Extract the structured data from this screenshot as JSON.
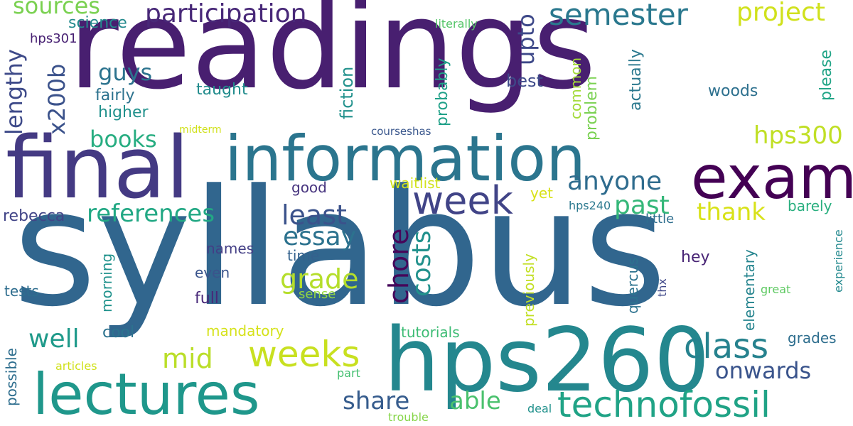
{
  "words": [
    {
      "key": "readings",
      "text": "readings",
      "color": "#481f70"
    },
    {
      "key": "syllabus",
      "text": "syllabus",
      "color": "#31668e"
    },
    {
      "key": "final",
      "text": "final",
      "color": "#443a83"
    },
    {
      "key": "information",
      "text": "information",
      "color": "#2b758e"
    },
    {
      "key": "exam",
      "text": "exam",
      "color": "#440154"
    },
    {
      "key": "hps260",
      "text": "hps260",
      "color": "#24878e"
    },
    {
      "key": "lectures",
      "text": "lectures",
      "color": "#1f978b"
    },
    {
      "key": "technofossil",
      "text": "technofossil",
      "color": "#20a386"
    },
    {
      "key": "weeks",
      "text": "weeks",
      "color": "#c8e020"
    },
    {
      "key": "class",
      "text": "class",
      "color": "#26828e"
    },
    {
      "key": "week",
      "text": "week",
      "color": "#414487"
    },
    {
      "key": "semester",
      "text": "semester",
      "color": "#2a788e"
    },
    {
      "key": "participation",
      "text": "participation",
      "color": "#482878"
    },
    {
      "key": "project",
      "text": "project",
      "color": "#d0e11c"
    },
    {
      "key": "sources",
      "text": "sources",
      "color": "#7ad151"
    },
    {
      "key": "references",
      "text": "references",
      "color": "#22a884"
    },
    {
      "key": "essay",
      "text": "essay",
      "color": "#2c728e"
    },
    {
      "key": "least",
      "text": "least",
      "color": "#3b528b"
    },
    {
      "key": "grade",
      "text": "grade",
      "color": "#b5de2b"
    },
    {
      "key": "chore",
      "text": "chore",
      "color": "#46075a"
    },
    {
      "key": "costs",
      "text": "costs",
      "color": "#21918c"
    },
    {
      "key": "anyone",
      "text": "anyone",
      "color": "#2f6c8e"
    },
    {
      "key": "past",
      "text": "past",
      "color": "#35b779"
    },
    {
      "key": "thank",
      "text": "thank",
      "color": "#d8e219"
    },
    {
      "key": "hps300",
      "text": "hps300",
      "color": "#c0df25"
    },
    {
      "key": "onwards",
      "text": "onwards",
      "color": "#3a548c"
    },
    {
      "key": "share",
      "text": "share",
      "color": "#365c8d"
    },
    {
      "key": "able",
      "text": "able",
      "color": "#4ac16d"
    },
    {
      "key": "mid",
      "text": "mid",
      "color": "#bade28"
    },
    {
      "key": "well",
      "text": "well",
      "color": "#1f9a8a"
    },
    {
      "key": "books",
      "text": "books",
      "color": "#27ad81"
    },
    {
      "key": "guys",
      "text": "guys",
      "color": "#2c738e"
    },
    {
      "key": "upto",
      "text": "upto",
      "color": "#3e4989"
    },
    {
      "key": "lengthy",
      "text": "lengthy",
      "color": "#3e4a89"
    },
    {
      "key": "x200b",
      "text": "x200b",
      "color": "#3b528b"
    },
    {
      "key": "fairly",
      "text": "fairly",
      "color": "#2c728e"
    },
    {
      "key": "higher",
      "text": "higher",
      "color": "#21918c"
    },
    {
      "key": "taught",
      "text": "taught",
      "color": "#228c8d"
    },
    {
      "key": "science",
      "text": "science",
      "color": "#238a8d"
    },
    {
      "key": "hps301",
      "text": "hps301",
      "color": "#482173"
    },
    {
      "key": "literally",
      "text": "literally",
      "color": "#54c568"
    },
    {
      "key": "fiction",
      "text": "fiction",
      "color": "#21918c"
    },
    {
      "key": "probably",
      "text": "probably",
      "color": "#1fa088"
    },
    {
      "key": "best",
      "text": "best",
      "color": "#3e4a89"
    },
    {
      "key": "common",
      "text": "common",
      "color": "#a2da37"
    },
    {
      "key": "problem",
      "text": "problem",
      "color": "#7ad151"
    },
    {
      "key": "actually",
      "text": "actually",
      "color": "#2a788e"
    },
    {
      "key": "woods",
      "text": "woods",
      "color": "#2d708e"
    },
    {
      "key": "please",
      "text": "please",
      "color": "#20a486"
    },
    {
      "key": "midterm",
      "text": "midterm",
      "color": "#d0e11c"
    },
    {
      "key": "courseshas",
      "text": "courseshas",
      "color": "#39568c"
    },
    {
      "key": "good",
      "text": "good",
      "color": "#46337e"
    },
    {
      "key": "waitlist",
      "text": "waitlist",
      "color": "#d2e21b"
    },
    {
      "key": "yet",
      "text": "yet",
      "color": "#d8e219"
    },
    {
      "key": "hps240",
      "text": "hps240",
      "color": "#2a788e"
    },
    {
      "key": "barely",
      "text": "barely",
      "color": "#29af7f"
    },
    {
      "key": "little",
      "text": "little",
      "color": "#2e6e8e"
    },
    {
      "key": "experience",
      "text": "experience",
      "color": "#23898e"
    },
    {
      "key": "rebecca",
      "text": "rebecca",
      "color": "#414487"
    },
    {
      "key": "names",
      "text": "names",
      "color": "#433e85"
    },
    {
      "key": "time",
      "text": "time",
      "color": "#34618d"
    },
    {
      "key": "hey",
      "text": "hey",
      "color": "#482475"
    },
    {
      "key": "quercus",
      "text": "quercus",
      "color": "#2c728e"
    },
    {
      "key": "thx",
      "text": "thx",
      "color": "#3f4788"
    },
    {
      "key": "elementary",
      "text": "elementary",
      "color": "#25848e"
    },
    {
      "key": "great",
      "text": "great",
      "color": "#5ec962"
    },
    {
      "key": "morning",
      "text": "morning",
      "color": "#20928c"
    },
    {
      "key": "even",
      "text": "even",
      "color": "#3a548c"
    },
    {
      "key": "sense",
      "text": "sense",
      "color": "#95d840"
    },
    {
      "key": "previously",
      "text": "previously",
      "color": "#c2df23"
    },
    {
      "key": "tests",
      "text": "tests",
      "color": "#2e6d8e"
    },
    {
      "key": "full",
      "text": "full",
      "color": "#482878"
    },
    {
      "key": "cool",
      "text": "cool",
      "color": "#2c728e"
    },
    {
      "key": "mandatory",
      "text": "mandatory",
      "color": "#d5e21a"
    },
    {
      "key": "tutorials",
      "text": "tutorials",
      "color": "#3dbc74"
    },
    {
      "key": "grades",
      "text": "grades",
      "color": "#2e6e8e"
    },
    {
      "key": "possible",
      "text": "possible",
      "color": "#2e6e8e"
    },
    {
      "key": "articles",
      "text": "articles",
      "color": "#d0e11c"
    },
    {
      "key": "part",
      "text": "part",
      "color": "#44bf70"
    },
    {
      "key": "trouble",
      "text": "trouble",
      "color": "#86d549"
    },
    {
      "key": "deal",
      "text": "deal",
      "color": "#21918c"
    }
  ]
}
